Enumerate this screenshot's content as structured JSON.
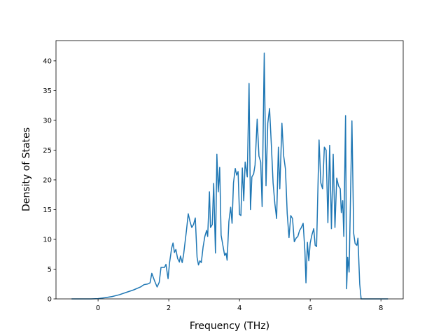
{
  "chart_data": {
    "type": "line",
    "xlabel": "Frequency (THz)",
    "ylabel": "Density of States",
    "xlim": [
      -1.19,
      8.63
    ],
    "ylim": [
      0,
      43.4
    ],
    "xticks": [
      0,
      2,
      4,
      6,
      8
    ],
    "yticks": [
      0,
      5,
      10,
      15,
      20,
      25,
      30,
      35,
      40
    ],
    "series": [
      {
        "color": "#1f77b4",
        "x": [
          -0.75,
          -0.2,
          0,
          0.2,
          0.4,
          0.6,
          0.8,
          1.0,
          1.2,
          1.3,
          1.4,
          1.47,
          1.52,
          1.6,
          1.67,
          1.73,
          1.78,
          1.82,
          1.88,
          1.92,
          1.98,
          2.02,
          2.08,
          2.12,
          2.16,
          2.2,
          2.25,
          2.3,
          2.33,
          2.38,
          2.42,
          2.5,
          2.55,
          2.6,
          2.65,
          2.7,
          2.75,
          2.8,
          2.84,
          2.88,
          2.92,
          2.97,
          3.02,
          3.07,
          3.1,
          3.15,
          3.18,
          3.23,
          3.27,
          3.32,
          3.36,
          3.4,
          3.44,
          3.48,
          3.53,
          3.58,
          3.62,
          3.65,
          3.7,
          3.75,
          3.79,
          3.83,
          3.88,
          3.92,
          3.96,
          4.0,
          4.04,
          4.08,
          4.12,
          4.16,
          4.22,
          4.27,
          4.31,
          4.35,
          4.4,
          4.44,
          4.5,
          4.55,
          4.6,
          4.64,
          4.7,
          4.75,
          4.8,
          4.85,
          4.9,
          4.95,
          5.0,
          5.05,
          5.1,
          5.14,
          5.2,
          5.25,
          5.3,
          5.35,
          5.4,
          5.45,
          5.5,
          5.55,
          5.6,
          5.65,
          5.7,
          5.75,
          5.8,
          5.85,
          5.88,
          5.92,
          5.96,
          6.0,
          6.05,
          6.1,
          6.14,
          6.18,
          6.25,
          6.3,
          6.35,
          6.4,
          6.45,
          6.5,
          6.55,
          6.6,
          6.65,
          6.7,
          6.75,
          6.8,
          6.85,
          6.88,
          6.92,
          6.95,
          7.0,
          7.03,
          7.06,
          7.1,
          7.18,
          7.23,
          7.27,
          7.32,
          7.35,
          7.4,
          7.44,
          7.6,
          8.2
        ],
        "values": [
          0,
          0,
          0.05,
          0.2,
          0.4,
          0.7,
          1.1,
          1.5,
          2.0,
          2.4,
          2.5,
          2.7,
          4.3,
          3.0,
          2.0,
          2.8,
          5.3,
          5.3,
          5.3,
          5.8,
          3.4,
          6.0,
          8.5,
          9.4,
          7.8,
          8.3,
          6.8,
          6.2,
          7.2,
          6.1,
          7.5,
          11.5,
          14.3,
          13.0,
          12.0,
          12.5,
          13.6,
          7.0,
          5.7,
          6.4,
          6.1,
          8.7,
          10.5,
          11.5,
          10.5,
          18.0,
          12.0,
          12.5,
          19.4,
          7.7,
          24.3,
          18.0,
          22.1,
          10.7,
          9.0,
          7.3,
          7.7,
          6.5,
          13.0,
          15.4,
          12.7,
          19.5,
          21.9,
          20.8,
          21.4,
          14.2,
          14.0,
          22.0,
          16.5,
          23.0,
          20.5,
          36.2,
          15.0,
          20.5,
          21.0,
          22.5,
          30.2,
          24.0,
          23.0,
          15.5,
          41.3,
          19.0,
          29.5,
          32.0,
          26.0,
          19.5,
          16.0,
          13.5,
          25.5,
          18.5,
          29.5,
          24.0,
          21.8,
          14.3,
          10.3,
          14.0,
          13.5,
          9.6,
          10.2,
          10.5,
          11.5,
          12.0,
          12.7,
          8.0,
          2.7,
          9.5,
          6.4,
          9.4,
          10.8,
          11.8,
          9.0,
          8.8,
          26.7,
          19.5,
          18.5,
          25.5,
          25.0,
          12.8,
          25.8,
          11.8,
          24.3,
          12.0,
          20.3,
          19.0,
          18.5,
          14.5,
          16.5,
          10.5,
          30.8,
          1.7,
          7.0,
          4.5,
          29.9,
          11.0,
          9.3,
          9.0,
          10.2,
          2.5,
          0,
          0,
          0
        ]
      }
    ]
  }
}
